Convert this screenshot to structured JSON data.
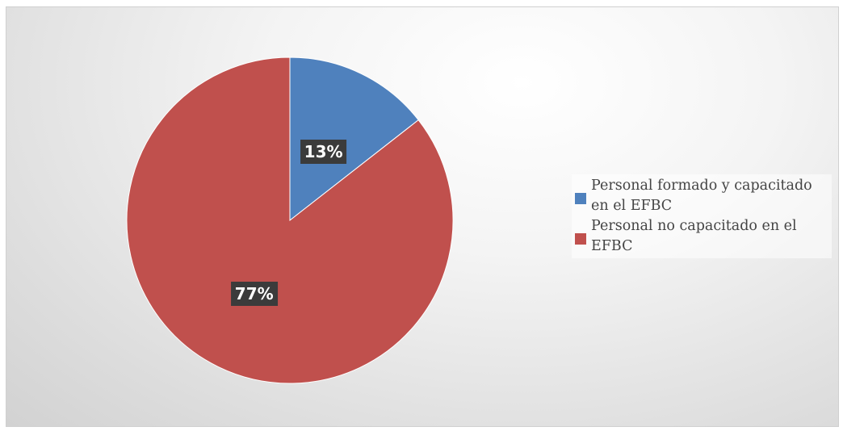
{
  "chart_data": {
    "type": "pie",
    "title": "",
    "slices": [
      {
        "label": "Personal formado y capacitado en el EFBC",
        "value": 13,
        "display": "13%",
        "color": "#4f81bd"
      },
      {
        "label": "Personal no capacitado en el EFBC",
        "value": 77,
        "display": "77%",
        "color": "#c0504d"
      }
    ],
    "legend_position": "right",
    "start_angle": "12 o'clock",
    "direction": "clockwise"
  }
}
